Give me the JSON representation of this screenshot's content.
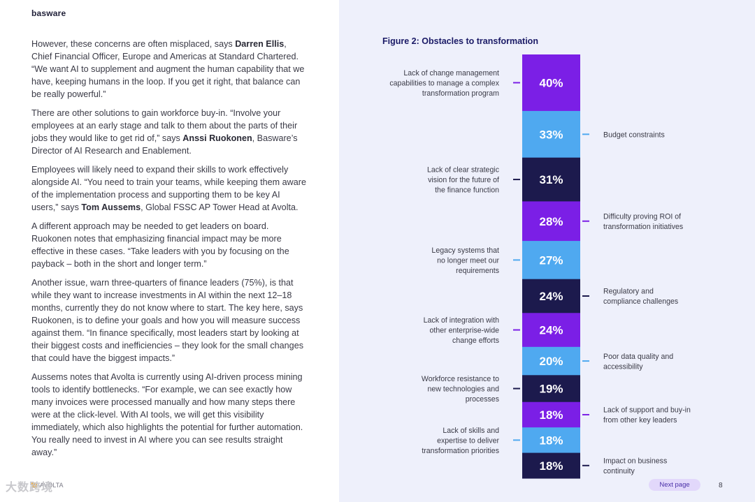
{
  "brand": {
    "logo_text": "basware"
  },
  "article": {
    "p1_a": "However, these concerns are often misplaced, says ",
    "p1_name": "Darren Ellis",
    "p1_b": ", Chief Financial Officer, Europe and Americas at Standard Chartered. “We want AI to supplement and augment the human capability that we have, keeping humans in the loop. If you get it right, that balance can be really powerful.”",
    "p2_a": "There are other solutions to gain workforce buy-in. “Involve your employees at an early stage and talk to them about the parts of their jobs they would like to get rid of,” says ",
    "p2_name": "Anssi Ruokonen",
    "p2_b": ", Basware’s Director of AI Research and Enablement.",
    "p3_a": "Employees will likely need to expand their skills to work effectively alongside AI. “You need to train your teams, while keeping them aware of the implementation process and supporting them to be key AI users,” says ",
    "p3_name": "Tom Aussems",
    "p3_b": ", Global FSSC AP Tower Head at Avolta.",
    "p4": "A different approach may be needed to get leaders on board. Ruokonen notes that emphasizing financial impact may be more effective in these cases. “Take leaders with you by focusing on the payback – both in the short and longer term.”",
    "p5": "Another issue, warn three-quarters of finance leaders (75%), is that while they want to increase investments in AI within the next 12–18 months, currently they do not know where to start. The key here, says Ruokonen, is to define your goals and how you will measure success against them. “In finance specifically, most leaders start by looking at their biggest costs and inefficiencies – they look for the small changes that could have the biggest impacts.”",
    "p6": "Aussems notes that Avolta is currently using AI-driven process mining tools to identify bottlenecks. “For example, we can see exactly how many invoices were processed manually and how many steps there were at the click-level. With AI tools, we will get this visibility immediately, which also highlights the potential for further automation. You really need to invest in AI where you can see results straight away.”"
  },
  "footer": {
    "left_text": "AVOLTA",
    "watermark": "大数跨境",
    "next_page": "Next page",
    "page_number": "8"
  },
  "chart_data": {
    "type": "bar",
    "orientation": "stacked-vertical",
    "title": "Figure 2: Obstacles to transformation",
    "unit": "%",
    "grid": false,
    "legend": "none",
    "categories": [
      "Lack of change management capabilities to manage a complex transformation program",
      "Budget constraints",
      "Lack of clear strategic vision for the future of the finance function",
      "Difficulty proving ROI of transformation initiatives",
      "Legacy systems that no longer meet our requirements",
      "Regulatory and compliance challenges",
      "Lack of integration with other enterprise-wide change efforts",
      "Poor data quality and accessibility",
      "Workforce resistance to new technologies and processes",
      "Lack of support and buy-in from other key leaders",
      "Lack of skills and expertise to deliver transformation priorities",
      "Impact on business continuity"
    ],
    "values": [
      40,
      33,
      31,
      28,
      27,
      24,
      24,
      20,
      19,
      18,
      18,
      18
    ],
    "value_labels": [
      "40%",
      "33%",
      "31%",
      "28%",
      "27%",
      "24%",
      "24%",
      "20%",
      "19%",
      "18%",
      "18%",
      "18%"
    ],
    "label_lines": [
      [
        "Lack of change management",
        "capabilities to manage a complex",
        "transformation program"
      ],
      [
        "Budget constraints"
      ],
      [
        "Lack of clear strategic",
        "vision for the future of",
        "the finance function"
      ],
      [
        "Difficulty proving ROI of",
        "transformation initiatives"
      ],
      [
        "Legacy systems that",
        "no longer meet our",
        "requirements"
      ],
      [
        "Regulatory and",
        "compliance challenges"
      ],
      [
        "Lack of integration with",
        "other enterprise-wide",
        "change efforts"
      ],
      [
        "Poor data quality and",
        "accessibility"
      ],
      [
        "Workforce resistance to",
        "new technologies and",
        "processes"
      ],
      [
        "Lack of support and buy-in",
        "from other key leaders"
      ],
      [
        "Lack of skills and",
        "expertise to deliver",
        "transformation priorities"
      ],
      [
        "Impact on business",
        "continuity"
      ]
    ],
    "label_sides": [
      "left",
      "right",
      "left",
      "right",
      "left",
      "right",
      "left",
      "right",
      "left",
      "right",
      "left",
      "right"
    ],
    "colors": [
      "#7b1fe6",
      "#4fa9f0",
      "#1c1a4d",
      "#7b1fe6",
      "#4fa9f0",
      "#1c1a4d",
      "#7b1fe6",
      "#4fa9f0",
      "#1c1a4d",
      "#7b1fe6",
      "#4fa9f0",
      "#1c1a4d"
    ]
  }
}
